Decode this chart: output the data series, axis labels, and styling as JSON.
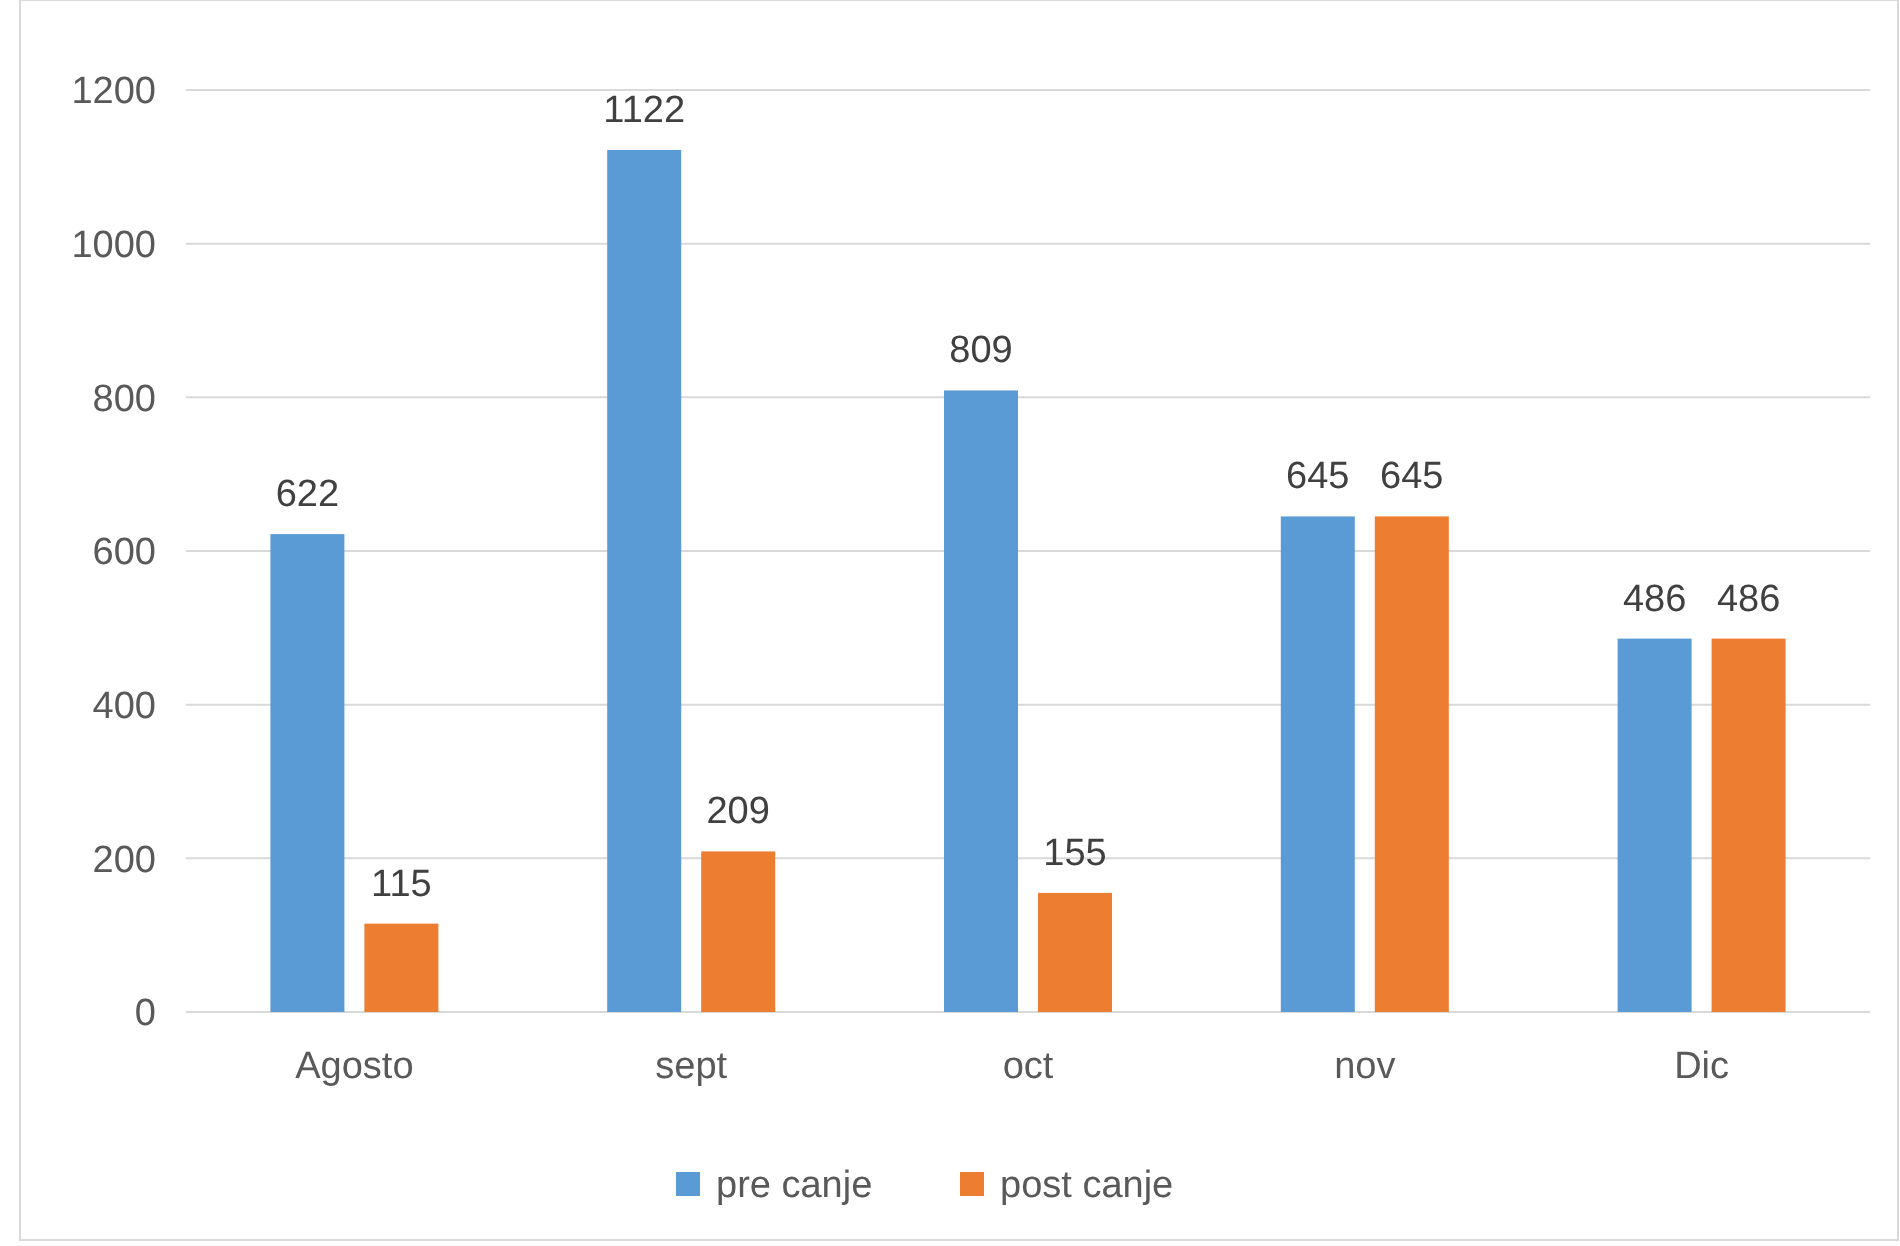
{
  "chart_data": {
    "type": "bar",
    "categories": [
      "Agosto",
      "sept",
      "oct",
      "nov",
      "Dic"
    ],
    "series": [
      {
        "name": "pre canje",
        "color": "#5b9bd5",
        "values": [
          622,
          1122,
          809,
          645,
          486
        ]
      },
      {
        "name": "post canje",
        "color": "#ed7d31",
        "values": [
          115,
          209,
          155,
          645,
          486
        ]
      }
    ],
    "ylim": [
      0,
      1200
    ],
    "yticks": [
      0,
      200,
      400,
      600,
      800,
      1000,
      1200
    ],
    "grid": "y",
    "legend": "bottom",
    "data_labels": true
  }
}
